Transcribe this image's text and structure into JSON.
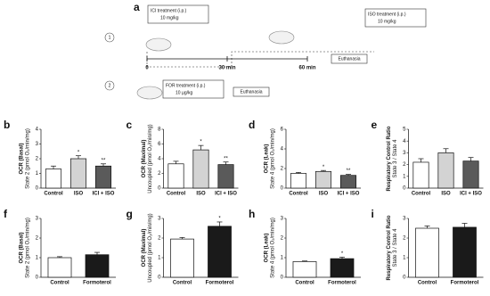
{
  "diagram": {
    "letter": "a",
    "ici_label": "ICI treatment (i.p.)",
    "ici_dose": "10 mg/kg",
    "iso_label": "ISO treatment (i.p.)",
    "iso_dose": "10 mg/kg",
    "protocol_1": "1",
    "protocol_2": "2",
    "t0": "0",
    "t30": "30 min",
    "t60": "60 min",
    "euthanasia_1": "Euthanasia",
    "for_label": "FOR treatment (i.p.)",
    "for_dose": "10 µg/kg",
    "euthanasia_2": "Euthanasia"
  },
  "chart_data": [
    {
      "type": "bar",
      "letter": "b",
      "ylabel": "OCR (Basal)",
      "ylabel_sub": "State 2 (pmol O₂/min/mg)",
      "categories": [
        "Control",
        "ISO",
        "ICI + ISO"
      ],
      "values": [
        1.3,
        2.0,
        1.5
      ],
      "errors": [
        0.2,
        0.2,
        0.15
      ],
      "annotations": [
        null,
        "*",
        "**"
      ],
      "colors": [
        "#ffffff",
        "#d3d3d3",
        "#5a5a5a"
      ],
      "ylim": [
        0,
        4
      ],
      "yticks": [
        0,
        1,
        2,
        3,
        4
      ]
    },
    {
      "type": "bar",
      "letter": "c",
      "ylabel": "OCR (Maximal)",
      "ylabel_sub": "Uncoupled (pmol O₂/min/mg)",
      "categories": [
        "Control",
        "ISO",
        "ICI + ISO"
      ],
      "values": [
        3.3,
        5.2,
        3.2
      ],
      "errors": [
        0.35,
        0.6,
        0.35
      ],
      "annotations": [
        null,
        "*",
        "**"
      ],
      "colors": [
        "#ffffff",
        "#d3d3d3",
        "#5a5a5a"
      ],
      "ylim": [
        0,
        8
      ],
      "yticks": [
        0,
        2,
        4,
        6,
        8
      ]
    },
    {
      "type": "bar",
      "letter": "d",
      "ylabel": "OCR (Leak)",
      "ylabel_sub": "State 4 (pmol O₂/min/mg)",
      "categories": [
        "Control",
        "ISO",
        "ICI + ISO"
      ],
      "values": [
        1.5,
        1.7,
        1.3
      ],
      "errors": [
        0.1,
        0.1,
        0.1
      ],
      "annotations": [
        null,
        "*",
        "**"
      ],
      "colors": [
        "#ffffff",
        "#d3d3d3",
        "#5a5a5a"
      ],
      "ylim": [
        0,
        6
      ],
      "yticks": [
        0,
        2,
        4,
        6
      ]
    },
    {
      "type": "bar",
      "letter": "e",
      "ylabel": "Respiratory Control Ratio",
      "ylabel_sub": "State 3 / State 4",
      "categories": [
        "Control",
        "ISO",
        "ICI + ISO"
      ],
      "values": [
        2.2,
        3.0,
        2.3
      ],
      "errors": [
        0.3,
        0.35,
        0.3
      ],
      "annotations": [
        null,
        null,
        null
      ],
      "colors": [
        "#ffffff",
        "#d3d3d3",
        "#5a5a5a"
      ],
      "ylim": [
        0,
        5
      ],
      "yticks": [
        0,
        1,
        2,
        3,
        4,
        5
      ]
    },
    {
      "type": "bar",
      "letter": "f",
      "ylabel": "OCR (Basal)",
      "ylabel_sub": "State 2 (pmol O₂/min/mg)",
      "categories": [
        "Control",
        "Formoterol"
      ],
      "values": [
        1.0,
        1.15
      ],
      "errors": [
        0.05,
        0.12
      ],
      "annotations": [
        null,
        null
      ],
      "colors": [
        "#ffffff",
        "#1a1a1a"
      ],
      "ylim": [
        0,
        3
      ],
      "yticks": [
        0,
        1,
        2,
        3
      ]
    },
    {
      "type": "bar",
      "letter": "g",
      "ylabel": "OCR (Maximal)",
      "ylabel_sub": "Uncoupled (pmol O₂/min/mg)",
      "categories": [
        "Control",
        "Formoterol"
      ],
      "values": [
        1.95,
        2.6
      ],
      "errors": [
        0.08,
        0.22
      ],
      "annotations": [
        null,
        "*"
      ],
      "colors": [
        "#ffffff",
        "#1a1a1a"
      ],
      "ylim": [
        0,
        3
      ],
      "yticks": [
        0,
        1,
        2,
        3
      ]
    },
    {
      "type": "bar",
      "letter": "h",
      "ylabel": "OCR (Leak)",
      "ylabel_sub": "State 4 (pmol O₂/min/mg)",
      "categories": [
        "Control",
        "Formoterol"
      ],
      "values": [
        0.8,
        0.95
      ],
      "errors": [
        0.03,
        0.08
      ],
      "annotations": [
        null,
        "*"
      ],
      "colors": [
        "#ffffff",
        "#1a1a1a"
      ],
      "ylim": [
        0,
        3
      ],
      "yticks": [
        0,
        1,
        2,
        3
      ]
    },
    {
      "type": "bar",
      "letter": "i",
      "ylabel": "Respiratory Control Ratio",
      "ylabel_sub": "State 3 / State 4",
      "categories": [
        "Control",
        "Formoterol"
      ],
      "values": [
        2.5,
        2.55
      ],
      "errors": [
        0.12,
        0.2
      ],
      "annotations": [
        null,
        null
      ],
      "colors": [
        "#ffffff",
        "#1a1a1a"
      ],
      "ylim": [
        0,
        3
      ],
      "yticks": [
        0,
        1,
        2,
        3
      ]
    }
  ]
}
